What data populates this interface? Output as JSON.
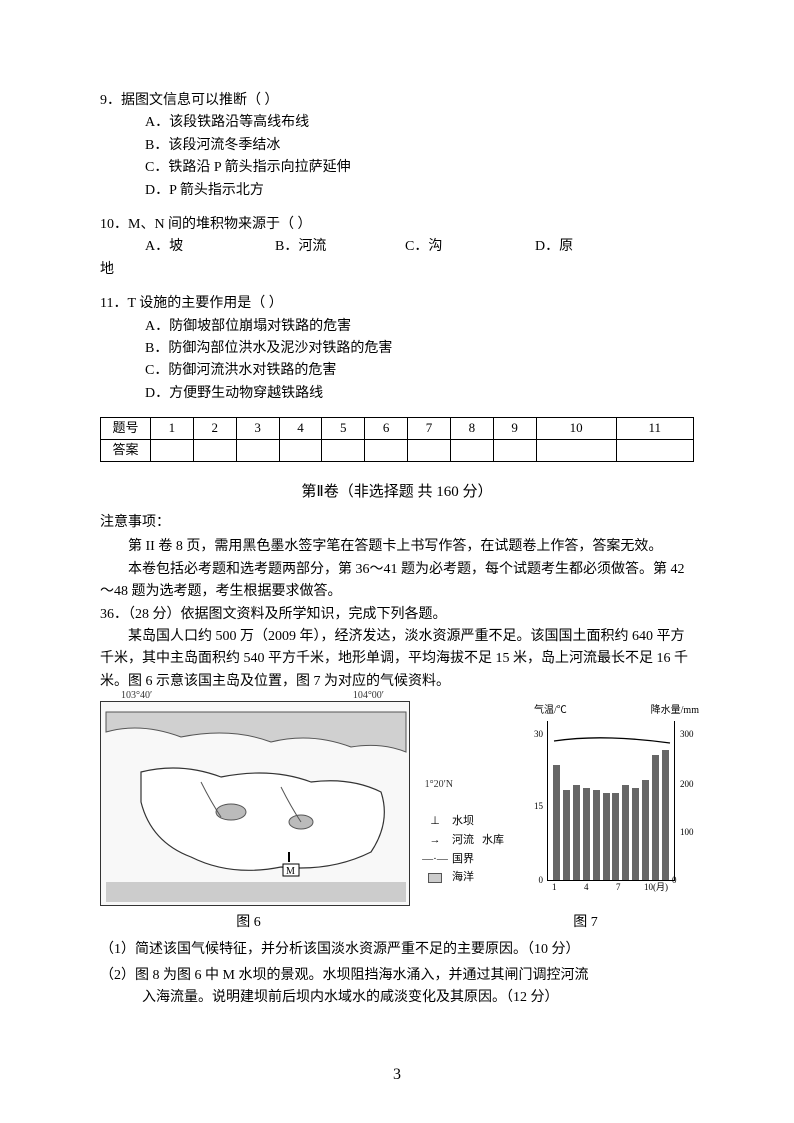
{
  "q9": {
    "stem": "9．据图文信息可以推断（   ）",
    "optA": "A．该段铁路沿等高线布线",
    "optB": "B．该段河流冬季结冰",
    "optC": "C．铁路沿 P 箭头指示向拉萨延伸",
    "optD": "D．P 箭头指示北方"
  },
  "q10": {
    "stem": "10．M、N 间的堆积物来源于（   ）",
    "optA": "A．坡",
    "optB": "B．河流",
    "optC": "C．沟",
    "optD": "D．原",
    "tail": "地"
  },
  "q11": {
    "stem": "11．T 设施的主要作用是（   ）",
    "optA": "A．防御坡部位崩塌对铁路的危害",
    "optB": "B．防御沟部位洪水及泥沙对铁路的危害",
    "optC": "C．防御河流洪水对铁路的危害",
    "optD": "D．方便野生动物穿越铁路线"
  },
  "table": {
    "header": "题号",
    "answer_label": "答案",
    "cols": [
      "1",
      "2",
      "3",
      "4",
      "5",
      "6",
      "7",
      "8",
      "9",
      "10",
      "11"
    ]
  },
  "section2": {
    "title": "第Ⅱ卷（非选择题   共 160 分）",
    "notice_heading": "注意事项：",
    "p1": "第 II 卷 8 页，需用黑色墨水签字笔在答题卡上书写作答，在试题卷上作答，答案无效。",
    "p2": "本卷包括必考题和选考题两部分，第 36～41 题为必考题，每个试题考生都必须做答。第 42～48 题为选考题，考生根据要求做答。",
    "q36_stem": "36．（28 分）依据图文资料及所学知识，完成下列各题。",
    "q36_body": "某岛国人口约 500 万（2009 年），经济发达，淡水资源严重不足。该国国土面积约 640 平方千米，其中主岛面积约 540 平方千米，地形单调，平均海拔不足 15 米，岛上河流最长不足 16 千米。图 6 示意该国主岛及位置，图 7 为对应的气候资料。"
  },
  "map": {
    "lon1": "103°40′",
    "lon2": "104°00′",
    "lat": "1°20′N",
    "m_label": "M",
    "legend": {
      "dam": "水坝",
      "river": "河流",
      "reservoir": "水库",
      "border": "国界",
      "ocean": "海洋"
    }
  },
  "chart": {
    "left_title": "气温/℃",
    "right_title": "降水量/mm",
    "temp_ticks": [
      "30",
      "15",
      "0"
    ],
    "rain_ticks": [
      "300",
      "200",
      "100",
      "0"
    ],
    "x_ticks": [
      "1",
      "4",
      "7",
      "10(月)"
    ],
    "bars": [
      230,
      180,
      190,
      185,
      180,
      175,
      175,
      190,
      185,
      200,
      250,
      260
    ],
    "bar_max": 300,
    "bar_color": "#666666"
  },
  "captions": {
    "fig6": "图 6",
    "fig7": "图 7"
  },
  "subq": {
    "s1": "（1）简述该国气候特征，并分析该国淡水资源严重不足的主要原因。（10 分）",
    "s2a": "（2）图 8 为图 6 中 M 水坝的景观。水坝阻挡海水涌入，并通过其闸门调控河流",
    "s2b": "入海流量。说明建坝前后坝内水域水的咸淡变化及其原因。（12 分）"
  },
  "page": "3"
}
